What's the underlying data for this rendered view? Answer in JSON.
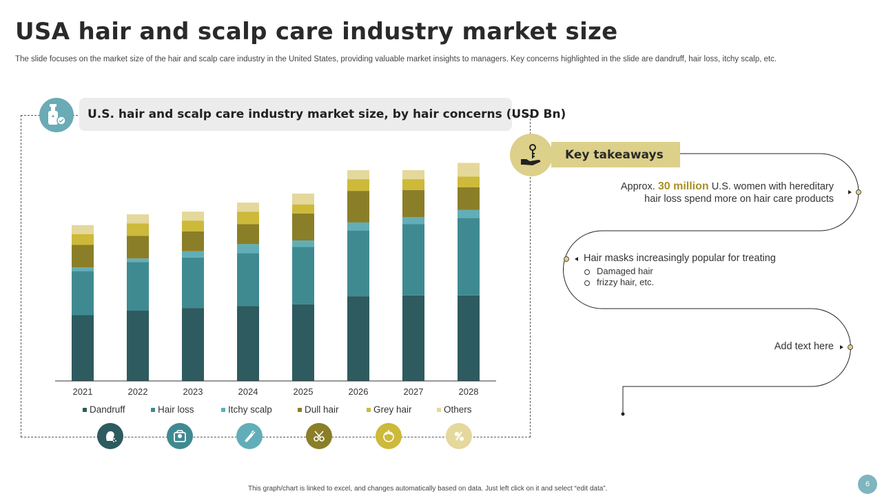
{
  "slide": {
    "title": "USA hair and scalp care industry market size",
    "subtitle": "The slide focuses on the market size of the hair and scalp care industry in the United States, providing valuable market insights to managers. Key concerns highlighted in the slide are dandruff, hair loss, itchy scalp, etc.",
    "footnote": "This graph/chart is linked to excel, and changes automatically based on data. Just left click on it and select “edit data”.",
    "page_number": "6"
  },
  "chart_data": {
    "type": "bar",
    "stacked": true,
    "title": "U.S. hair and scalp care industry market size, by hair concerns (USD Bn)",
    "categories": [
      "2021",
      "2022",
      "2023",
      "2024",
      "2025",
      "2026",
      "2027",
      "2028"
    ],
    "series": [
      {
        "name": "Dandruff",
        "color": "#2d5b5f",
        "values": [
          7.3,
          7.8,
          8.1,
          8.3,
          8.5,
          9.4,
          9.5,
          9.5
        ]
      },
      {
        "name": "Hair loss",
        "color": "#3f8a91",
        "values": [
          4.9,
          5.4,
          5.6,
          5.9,
          6.4,
          7.3,
          7.9,
          8.6
        ]
      },
      {
        "name": "Itchy scalp",
        "color": "#62aeb8",
        "values": [
          0.4,
          0.4,
          0.7,
          1.0,
          0.7,
          0.9,
          0.8,
          0.9
        ]
      },
      {
        "name": "Dull hair",
        "color": "#8b7e28",
        "values": [
          2.5,
          2.5,
          2.2,
          2.2,
          3.0,
          3.5,
          3.0,
          2.5
        ]
      },
      {
        "name": "Grey hair",
        "color": "#cdb93a",
        "values": [
          1.2,
          1.4,
          1.2,
          1.4,
          1.0,
          1.3,
          1.2,
          1.2
        ]
      },
      {
        "name": "Others",
        "color": "#e4d89c",
        "values": [
          1.0,
          1.0,
          1.0,
          1.0,
          1.2,
          1.0,
          1.0,
          1.5
        ]
      }
    ],
    "ylim": [
      0,
      26
    ],
    "grid": false,
    "legend_position": "bottom"
  },
  "concern_icons": [
    {
      "name": "dandruff-icon",
      "color": "#2d5b5f"
    },
    {
      "name": "hair-loss-icon",
      "color": "#3f8a91"
    },
    {
      "name": "itchy-scalp-icon",
      "color": "#62aeb8"
    },
    {
      "name": "dull-hair-icon",
      "color": "#8b7e28"
    },
    {
      "name": "grey-hair-icon",
      "color": "#cdb93a"
    },
    {
      "name": "others-icon",
      "color": "#e4d89c"
    }
  ],
  "takeaways": {
    "heading": "Key takeaways",
    "item1_prefix": "Approx.",
    "item1_highlight": "30 million",
    "item1_suffix": "U.S. women with hereditary hair loss spend more on hair care products",
    "item2_text": "Hair masks increasingly popular for treating",
    "item2_subitems": [
      "Damaged hair",
      "frizzy hair, etc."
    ],
    "item3_text": "Add text here"
  },
  "colors": {
    "accent_teal": "#6aabb5",
    "accent_gold": "#dcd08a",
    "highlight_gold": "#a8901f"
  }
}
